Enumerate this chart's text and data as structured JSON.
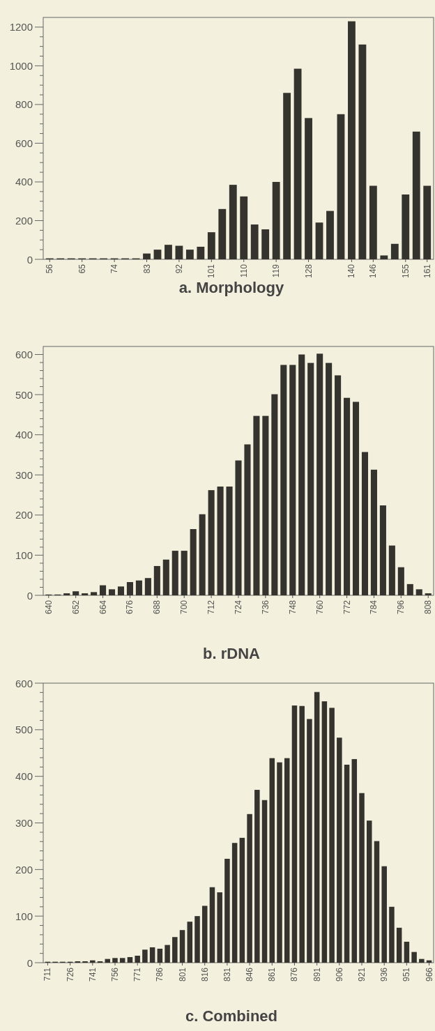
{
  "chart_data": [
    {
      "type": "bar",
      "title": "a. Morphology",
      "color": "#34332e",
      "ylim": [
        0,
        1250
      ],
      "yticks": [
        0,
        {
          "value": 50,
          "label": null
        },
        {
          "value": 100,
          "label": null
        },
        {
          "value": 150,
          "label": null
        },
        200,
        {
          "value": 250,
          "label": null
        },
        {
          "value": 300,
          "label": null
        },
        {
          "value": 350,
          "label": null
        },
        400,
        {
          "value": 450,
          "label": null
        },
        {
          "value": 500,
          "label": null
        },
        {
          "value": 550,
          "label": null
        },
        600,
        {
          "value": 650,
          "label": null
        },
        {
          "value": 700,
          "label": null
        },
        {
          "value": 750,
          "label": null
        },
        800,
        {
          "value": 850,
          "label": null
        },
        {
          "value": 900,
          "label": null
        },
        {
          "value": 950,
          "label": null
        },
        1000,
        {
          "value": 1050,
          "label": null
        },
        {
          "value": 1100,
          "label": null
        },
        {
          "value": 1150,
          "label": null
        },
        1200
      ],
      "categories": [
        "56",
        null,
        null,
        "65",
        null,
        null,
        "74",
        null,
        null,
        "83",
        null,
        null,
        "92",
        null,
        null,
        "101",
        null,
        null,
        "110",
        null,
        null,
        "119",
        null,
        null,
        "128",
        null,
        null,
        null,
        "140",
        null,
        "146",
        null,
        null,
        "155",
        null,
        "161"
      ],
      "values": [
        5,
        5,
        5,
        5,
        5,
        5,
        5,
        5,
        5,
        30,
        50,
        75,
        70,
        50,
        65,
        140,
        260,
        385,
        325,
        180,
        155,
        400,
        860,
        985,
        730,
        190,
        250,
        750,
        1230,
        1110,
        380,
        20,
        80,
        335,
        660,
        380
      ]
    },
    {
      "type": "bar",
      "title": "b. rDNA",
      "color": "#34332e",
      "ylim": [
        0,
        620
      ],
      "yticks": [
        0,
        {
          "value": 20,
          "label": null
        },
        {
          "value": 40,
          "label": null
        },
        {
          "value": 60,
          "label": null
        },
        {
          "value": 80,
          "label": null
        },
        100,
        {
          "value": 120,
          "label": null
        },
        {
          "value": 140,
          "label": null
        },
        {
          "value": 160,
          "label": null
        },
        {
          "value": 180,
          "label": null
        },
        200,
        {
          "value": 220,
          "label": null
        },
        {
          "value": 240,
          "label": null
        },
        {
          "value": 260,
          "label": null
        },
        {
          "value": 280,
          "label": null
        },
        300,
        {
          "value": 320,
          "label": null
        },
        {
          "value": 340,
          "label": null
        },
        {
          "value": 360,
          "label": null
        },
        {
          "value": 380,
          "label": null
        },
        400,
        {
          "value": 420,
          "label": null
        },
        {
          "value": 440,
          "label": null
        },
        {
          "value": 460,
          "label": null
        },
        {
          "value": 480,
          "label": null
        },
        500,
        {
          "value": 520,
          "label": null
        },
        {
          "value": 540,
          "label": null
        },
        {
          "value": 560,
          "label": null
        },
        {
          "value": 580,
          "label": null
        },
        600
      ],
      "categories": [
        "640",
        null,
        null,
        "652",
        null,
        null,
        "664",
        null,
        null,
        "676",
        null,
        null,
        "688",
        null,
        null,
        "700",
        null,
        null,
        "712",
        null,
        null,
        "724",
        null,
        null,
        "736",
        null,
        null,
        "748",
        null,
        null,
        "760",
        null,
        null,
        "772",
        null,
        null,
        "784",
        null,
        null,
        "796",
        null,
        null,
        "808"
      ],
      "values": [
        2,
        2,
        5,
        10,
        5,
        8,
        25,
        15,
        22,
        33,
        37,
        43,
        73,
        89,
        111,
        111,
        165,
        202,
        262,
        271,
        271,
        336,
        376,
        447,
        447,
        501,
        574,
        574,
        600,
        579,
        602,
        579,
        548,
        492,
        482,
        357,
        313,
        224,
        124,
        70,
        28,
        15,
        5
      ]
    },
    {
      "type": "bar",
      "title": "c. Combined",
      "color": "#34332e",
      "ylim": [
        0,
        600
      ],
      "yticks": [
        0,
        {
          "value": 20,
          "label": null
        },
        {
          "value": 40,
          "label": null
        },
        {
          "value": 60,
          "label": null
        },
        {
          "value": 80,
          "label": null
        },
        100,
        {
          "value": 120,
          "label": null
        },
        {
          "value": 140,
          "label": null
        },
        {
          "value": 160,
          "label": null
        },
        {
          "value": 180,
          "label": null
        },
        200,
        {
          "value": 220,
          "label": null
        },
        {
          "value": 240,
          "label": null
        },
        {
          "value": 260,
          "label": null
        },
        {
          "value": 280,
          "label": null
        },
        300,
        {
          "value": 320,
          "label": null
        },
        {
          "value": 340,
          "label": null
        },
        {
          "value": 360,
          "label": null
        },
        {
          "value": 380,
          "label": null
        },
        400,
        {
          "value": 420,
          "label": null
        },
        {
          "value": 440,
          "label": null
        },
        {
          "value": 460,
          "label": null
        },
        {
          "value": 480,
          "label": null
        },
        500,
        {
          "value": 520,
          "label": null
        },
        {
          "value": 540,
          "label": null
        },
        {
          "value": 560,
          "label": null
        },
        {
          "value": 580,
          "label": null
        },
        600
      ],
      "categories": [
        "711",
        null,
        null,
        "726",
        null,
        null,
        "741",
        null,
        null,
        "756",
        null,
        null,
        "771",
        null,
        null,
        "786",
        null,
        null,
        "801",
        null,
        null,
        "816",
        null,
        null,
        "831",
        null,
        null,
        "846",
        null,
        null,
        "861",
        null,
        null,
        "876",
        null,
        null,
        "891",
        null,
        null,
        "906",
        null,
        null,
        "921",
        null,
        null,
        "936",
        null,
        null,
        "951",
        null,
        null,
        "966"
      ],
      "values": [
        2,
        2,
        2,
        2,
        3,
        3,
        5,
        3,
        8,
        10,
        10,
        12,
        15,
        28,
        33,
        30,
        38,
        55,
        70,
        88,
        100,
        122,
        162,
        151,
        223,
        257,
        268,
        319,
        371,
        349,
        439,
        430,
        439,
        552,
        551,
        523,
        581,
        561,
        547,
        483,
        425,
        437,
        364,
        305,
        261,
        207,
        120,
        75,
        45,
        23,
        8,
        5
      ]
    }
  ]
}
